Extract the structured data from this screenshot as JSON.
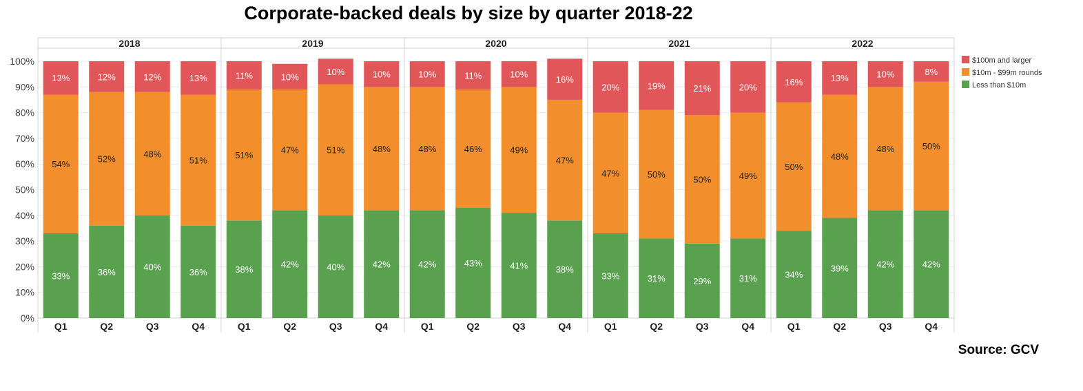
{
  "title": "Corporate-backed deals by size by quarter 2018-22",
  "source": "Source: GCV",
  "chart_data": {
    "type": "bar",
    "stacked": true,
    "title": "Corporate-backed deals by size by quarter 2018-22",
    "xlabel": "",
    "ylabel": "",
    "ylim": [
      0,
      100
    ],
    "yticks": [
      "0%",
      "10%",
      "20%",
      "30%",
      "40%",
      "50%",
      "60%",
      "70%",
      "80%",
      "90%",
      "100%"
    ],
    "grid": true,
    "legend_position": "top-right",
    "groups": [
      {
        "label": "2018",
        "categories": [
          "Q1",
          "Q2",
          "Q3",
          "Q4"
        ]
      },
      {
        "label": "2019",
        "categories": [
          "Q1",
          "Q2",
          "Q3",
          "Q4"
        ]
      },
      {
        "label": "2020",
        "categories": [
          "Q1",
          "Q2",
          "Q3",
          "Q4"
        ]
      },
      {
        "label": "2021",
        "categories": [
          "Q1",
          "Q2",
          "Q3",
          "Q4"
        ]
      },
      {
        "label": "2022",
        "categories": [
          "Q1",
          "Q2",
          "Q3",
          "Q4"
        ]
      }
    ],
    "series": [
      {
        "name": "Less than $10m",
        "color": "#59a14f",
        "values": [
          33,
          36,
          40,
          36,
          38,
          42,
          40,
          42,
          42,
          43,
          41,
          38,
          33,
          31,
          29,
          31,
          34,
          39,
          42,
          42
        ],
        "labels": [
          "33%",
          "36%",
          "40%",
          "36%",
          "38%",
          "42%",
          "40%",
          "42%",
          "42%",
          "43%",
          "41%",
          "38%",
          "33%",
          "31%",
          "29%",
          "31%",
          "34%",
          "39%",
          "42%",
          "42%"
        ]
      },
      {
        "name": "$10m - $99m rounds",
        "color": "#f28e2b",
        "values": [
          54,
          52,
          48,
          51,
          51,
          47,
          51,
          48,
          48,
          46,
          49,
          47,
          47,
          50,
          50,
          49,
          50,
          48,
          48,
          50
        ],
        "labels": [
          "54%",
          "52%",
          "48%",
          "51%",
          "51%",
          "47%",
          "51%",
          "48%",
          "48%",
          "46%",
          "49%",
          "47%",
          "47%",
          "50%",
          "50%",
          "49%",
          "50%",
          "48%",
          "48%",
          "50%"
        ]
      },
      {
        "name": "$100m and larger",
        "color": "#e15759",
        "values": [
          13,
          12,
          12,
          13,
          11,
          10,
          10,
          10,
          10,
          11,
          10,
          16,
          20,
          19,
          21,
          20,
          16,
          13,
          10,
          8
        ],
        "labels": [
          "13%",
          "12%",
          "12%",
          "13%",
          "11%",
          "10%",
          "10%",
          "10%",
          "10%",
          "11%",
          "10%",
          "16%",
          "20%",
          "19%",
          "21%",
          "20%",
          "16%",
          "13%",
          "10%",
          "8%"
        ]
      }
    ],
    "legend": [
      {
        "name": "$100m and larger",
        "color": "#e15759"
      },
      {
        "name": "$10m - $99m rounds",
        "color": "#f28e2b"
      },
      {
        "name": "Less than $10m",
        "color": "#59a14f"
      }
    ]
  }
}
